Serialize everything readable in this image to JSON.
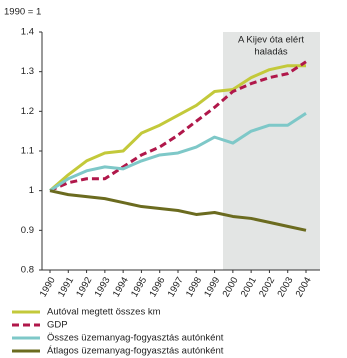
{
  "chart_data": {
    "type": "line",
    "ylabel": "1990 = 1",
    "annotation": [
      "A Kijev óta elért",
      "haladás"
    ],
    "categories": [
      "1990",
      "1991",
      "1992",
      "1993",
      "1994",
      "1995",
      "1996",
      "1997",
      "1998",
      "1999",
      "2000",
      "2001",
      "2002",
      "2003",
      "2004"
    ],
    "ylim": [
      0.8,
      1.4
    ],
    "yticks": [
      0.8,
      0.9,
      1,
      1.1,
      1.2,
      1.3,
      1.4
    ],
    "series": [
      {
        "name": "Autóval megtett összes km",
        "color": "#c3c93a",
        "dash": false,
        "values": [
          1,
          1.04,
          1.075,
          1.095,
          1.1,
          1.145,
          1.165,
          1.19,
          1.215,
          1.25,
          1.255,
          1.285,
          1.305,
          1.315,
          1.315
        ]
      },
      {
        "name": "GDP",
        "color": "#b0174a",
        "dash": true,
        "values": [
          1,
          1.02,
          1.03,
          1.03,
          1.06,
          1.09,
          1.11,
          1.14,
          1.175,
          1.21,
          1.25,
          1.27,
          1.285,
          1.295,
          1.325
        ]
      },
      {
        "name": "Összes üzemanyag-fogyasztás autónként",
        "color": "#7ec8c8",
        "dash": false,
        "values": [
          1,
          1.03,
          1.05,
          1.06,
          1.055,
          1.075,
          1.09,
          1.095,
          1.11,
          1.135,
          1.12,
          1.15,
          1.165,
          1.165,
          1.195
        ]
      },
      {
        "name": "Átlagos üzemanyag-fogyasztás autónként",
        "color": "#6b6b1f",
        "dash": false,
        "values": [
          1,
          0.99,
          0.985,
          0.98,
          0.97,
          0.96,
          0.955,
          0.95,
          0.94,
          0.945,
          0.935,
          0.93,
          0.92,
          0.91,
          0.9
        ]
      }
    ]
  }
}
